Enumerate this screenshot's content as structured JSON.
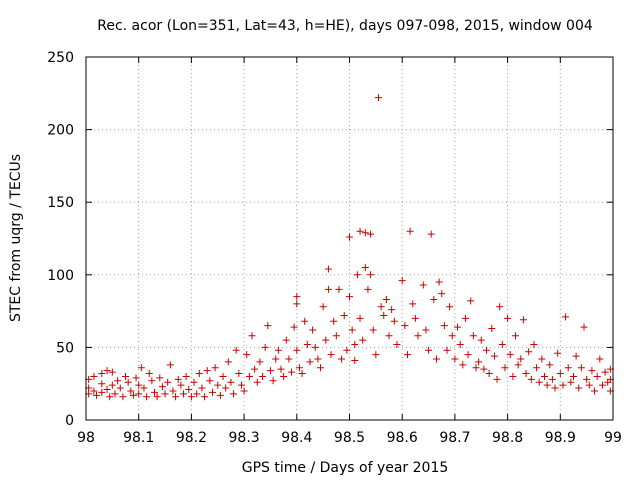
{
  "chart_data": {
    "type": "scatter",
    "title": "Rec. acor (Lon=351, Lat=43, h=HE), days 097-098, 2015, window 004",
    "xlabel": "GPS time / Days of year 2015",
    "ylabel": "STEC from uqrg / TECUs",
    "xlim": [
      98,
      99
    ],
    "ylim": [
      0,
      250
    ],
    "x_ticks": [
      "98",
      "98.1",
      "98.2",
      "98.3",
      "98.4",
      "98.5",
      "98.6",
      "98.7",
      "98.8",
      "98.9",
      "99"
    ],
    "y_ticks": [
      "0",
      "50",
      "100",
      "150",
      "200",
      "250"
    ],
    "grid": true,
    "marker": "+",
    "color": "#cc0000",
    "series": [
      {
        "name": "STEC",
        "points": [
          [
            98.005,
            28
          ],
          [
            98.005,
            22
          ],
          [
            98.005,
            18
          ],
          [
            98.015,
            30
          ],
          [
            98.015,
            20
          ],
          [
            98.02,
            17
          ],
          [
            98.03,
            32
          ],
          [
            98.03,
            25
          ],
          [
            98.03,
            19
          ],
          [
            98.04,
            34
          ],
          [
            98.04,
            21
          ],
          [
            98.045,
            16
          ],
          [
            98.05,
            33
          ],
          [
            98.05,
            24
          ],
          [
            98.055,
            18
          ],
          [
            98.06,
            27
          ],
          [
            98.065,
            22
          ],
          [
            98.07,
            16
          ],
          [
            98.075,
            30
          ],
          [
            98.08,
            26
          ],
          [
            98.085,
            20
          ],
          [
            98.09,
            17
          ],
          [
            98.095,
            29
          ],
          [
            98.1,
            24
          ],
          [
            98.1,
            18
          ],
          [
            98.105,
            36
          ],
          [
            98.11,
            22
          ],
          [
            98.115,
            16
          ],
          [
            98.12,
            32
          ],
          [
            98.125,
            27
          ],
          [
            98.13,
            19
          ],
          [
            98.135,
            16
          ],
          [
            98.14,
            29
          ],
          [
            98.145,
            23
          ],
          [
            98.15,
            18
          ],
          [
            98.155,
            26
          ],
          [
            98.16,
            38
          ],
          [
            98.165,
            20
          ],
          [
            98.17,
            16
          ],
          [
            98.175,
            28
          ],
          [
            98.18,
            24
          ],
          [
            98.185,
            18
          ],
          [
            98.19,
            30
          ],
          [
            98.195,
            21
          ],
          [
            98.2,
            16
          ],
          [
            98.205,
            26
          ],
          [
            98.21,
            18
          ],
          [
            98.215,
            32
          ],
          [
            98.22,
            22
          ],
          [
            98.225,
            16
          ],
          [
            98.23,
            34
          ],
          [
            98.235,
            27
          ],
          [
            98.24,
            19
          ],
          [
            98.245,
            36
          ],
          [
            98.25,
            24
          ],
          [
            98.255,
            17
          ],
          [
            98.26,
            30
          ],
          [
            98.265,
            22
          ],
          [
            98.27,
            40
          ],
          [
            98.275,
            26
          ],
          [
            98.28,
            18
          ],
          [
            98.285,
            48
          ],
          [
            98.29,
            32
          ],
          [
            98.295,
            24
          ],
          [
            98.3,
            20
          ],
          [
            98.305,
            45
          ],
          [
            98.31,
            30
          ],
          [
            98.315,
            58
          ],
          [
            98.32,
            35
          ],
          [
            98.325,
            26
          ],
          [
            98.33,
            40
          ],
          [
            98.335,
            30
          ],
          [
            98.34,
            50
          ],
          [
            98.345,
            65
          ],
          [
            98.35,
            34
          ],
          [
            98.355,
            27
          ],
          [
            98.36,
            42
          ],
          [
            98.365,
            48
          ],
          [
            98.37,
            35
          ],
          [
            98.375,
            30
          ],
          [
            98.38,
            55
          ],
          [
            98.385,
            42
          ],
          [
            98.39,
            33
          ],
          [
            98.395,
            64
          ],
          [
            98.4,
            85
          ],
          [
            98.4,
            80
          ],
          [
            98.4,
            48
          ],
          [
            98.405,
            36
          ],
          [
            98.41,
            32
          ],
          [
            98.415,
            68
          ],
          [
            98.42,
            52
          ],
          [
            98.425,
            40
          ],
          [
            98.43,
            62
          ],
          [
            98.435,
            50
          ],
          [
            98.44,
            42
          ],
          [
            98.445,
            36
          ],
          [
            98.45,
            78
          ],
          [
            98.455,
            55
          ],
          [
            98.46,
            104
          ],
          [
            98.46,
            90
          ],
          [
            98.465,
            45
          ],
          [
            98.47,
            68
          ],
          [
            98.475,
            58
          ],
          [
            98.48,
            90
          ],
          [
            98.485,
            42
          ],
          [
            98.49,
            72
          ],
          [
            98.495,
            48
          ],
          [
            98.5,
            126
          ],
          [
            98.5,
            85
          ],
          [
            98.505,
            62
          ],
          [
            98.51,
            52
          ],
          [
            98.51,
            41
          ],
          [
            98.515,
            100
          ],
          [
            98.52,
            130
          ],
          [
            98.52,
            70
          ],
          [
            98.525,
            55
          ],
          [
            98.53,
            105
          ],
          [
            98.53,
            129
          ],
          [
            98.535,
            90
          ],
          [
            98.54,
            128
          ],
          [
            98.54,
            100
          ],
          [
            98.545,
            62
          ],
          [
            98.55,
            45
          ],
          [
            98.555,
            222
          ],
          [
            98.56,
            78
          ],
          [
            98.565,
            72
          ],
          [
            98.57,
            83
          ],
          [
            98.575,
            58
          ],
          [
            98.58,
            76
          ],
          [
            98.585,
            68
          ],
          [
            98.59,
            52
          ],
          [
            98.6,
            96
          ],
          [
            98.605,
            65
          ],
          [
            98.61,
            45
          ],
          [
            98.615,
            130
          ],
          [
            98.62,
            80
          ],
          [
            98.625,
            70
          ],
          [
            98.63,
            58
          ],
          [
            98.64,
            93
          ],
          [
            98.645,
            62
          ],
          [
            98.65,
            48
          ],
          [
            98.655,
            128
          ],
          [
            98.66,
            83
          ],
          [
            98.665,
            42
          ],
          [
            98.67,
            95
          ],
          [
            98.675,
            87
          ],
          [
            98.68,
            65
          ],
          [
            98.685,
            48
          ],
          [
            98.69,
            78
          ],
          [
            98.695,
            58
          ],
          [
            98.7,
            42
          ],
          [
            98.705,
            64
          ],
          [
            98.71,
            52
          ],
          [
            98.715,
            38
          ],
          [
            98.72,
            70
          ],
          [
            98.725,
            45
          ],
          [
            98.73,
            82
          ],
          [
            98.735,
            58
          ],
          [
            98.74,
            36
          ],
          [
            98.745,
            40
          ],
          [
            98.75,
            55
          ],
          [
            98.755,
            35
          ],
          [
            98.76,
            48
          ],
          [
            98.765,
            32
          ],
          [
            98.77,
            63
          ],
          [
            98.775,
            44
          ],
          [
            98.78,
            28
          ],
          [
            98.785,
            78
          ],
          [
            98.79,
            52
          ],
          [
            98.795,
            36
          ],
          [
            98.8,
            70
          ],
          [
            98.805,
            45
          ],
          [
            98.81,
            30
          ],
          [
            98.815,
            58
          ],
          [
            98.82,
            38
          ],
          [
            98.825,
            42
          ],
          [
            98.83,
            69
          ],
          [
            98.835,
            32
          ],
          [
            98.84,
            47
          ],
          [
            98.845,
            28
          ],
          [
            98.85,
            52
          ],
          [
            98.855,
            36
          ],
          [
            98.86,
            26
          ],
          [
            98.865,
            42
          ],
          [
            98.87,
            30
          ],
          [
            98.875,
            24
          ],
          [
            98.88,
            38
          ],
          [
            98.885,
            28
          ],
          [
            98.89,
            22
          ],
          [
            98.895,
            46
          ],
          [
            98.9,
            32
          ],
          [
            98.905,
            24
          ],
          [
            98.91,
            71
          ],
          [
            98.915,
            36
          ],
          [
            98.92,
            26
          ],
          [
            98.925,
            30
          ],
          [
            98.93,
            44
          ],
          [
            98.935,
            22
          ],
          [
            98.94,
            36
          ],
          [
            98.945,
            64
          ],
          [
            98.95,
            28
          ],
          [
            98.955,
            24
          ],
          [
            98.96,
            34
          ],
          [
            98.965,
            20
          ],
          [
            98.97,
            30
          ],
          [
            98.975,
            42
          ],
          [
            98.98,
            24
          ],
          [
            98.985,
            33
          ],
          [
            98.99,
            26
          ],
          [
            98.995,
            20
          ],
          [
            98.995,
            28
          ],
          [
            98.995,
            35
          ]
        ]
      }
    ]
  }
}
